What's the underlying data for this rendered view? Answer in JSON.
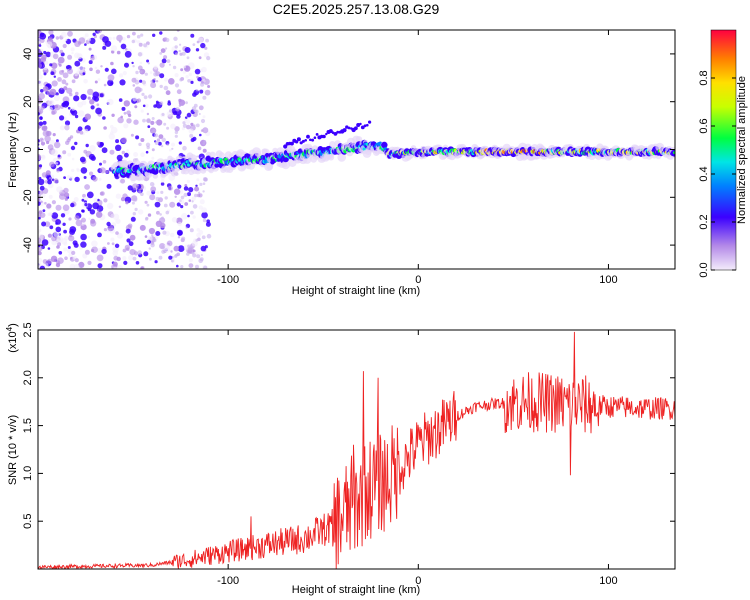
{
  "title": "C2E5.2025.257.13.08.G29",
  "chart_data": [
    {
      "type": "heatmap",
      "name": "spectrogram",
      "xlabel": "Height of straight line (km)",
      "ylabel": "Frequency (Hz)",
      "xlim": [
        -200,
        135
      ],
      "ylim": [
        -50,
        50
      ],
      "xticks": [
        -100,
        0,
        100
      ],
      "yticks": [
        -40,
        -20,
        0,
        20,
        40
      ],
      "colorbar": {
        "label": "Normalized spectral amplitude",
        "range": [
          0.0,
          1.0
        ],
        "ticks": [
          0.0,
          0.2,
          0.4,
          0.6,
          0.8
        ],
        "tick_labels": [
          "0.0",
          "0.2",
          "0.4",
          "0.6",
          "0.8"
        ]
      },
      "ridge": {
        "x": [
          -160,
          -140,
          -120,
          -100,
          -80,
          -60,
          -40,
          -20,
          -15,
          0,
          20,
          40,
          60,
          80,
          100,
          120,
          135
        ],
        "freq": [
          -9,
          -8,
          -6,
          -5,
          -4,
          -2,
          0,
          2,
          -2,
          -1,
          -1,
          -1,
          -1,
          -1,
          -1,
          -1,
          -1
        ]
      }
    },
    {
      "type": "line",
      "name": "snr",
      "xlabel": "Height of straight line (km)",
      "ylabel": "SNR (10 * v/v)",
      "y_multiplier_label": "(x10",
      "y_multiplier_exp": "4",
      "y_multiplier_close": ")",
      "xlim": [
        -200,
        135
      ],
      "ylim": [
        0,
        2.5
      ],
      "xticks": [
        -100,
        0,
        100
      ],
      "yticks": [
        0.5,
        1.0,
        1.5,
        2.0,
        2.5
      ],
      "ytick_labels": [
        "0.5",
        "1.0",
        "1.5",
        "2.0",
        "2.5"
      ],
      "color": "#ee2222",
      "envelope": {
        "x": [
          -200,
          -140,
          -120,
          -100,
          -80,
          -60,
          -45,
          -35,
          -25,
          -15,
          -8,
          0,
          10,
          20,
          30,
          40,
          60,
          80,
          100,
          120,
          135
        ],
        "y": [
          0.02,
          0.04,
          0.1,
          0.18,
          0.25,
          0.32,
          0.45,
          0.65,
          0.85,
          0.95,
          1.1,
          1.3,
          1.45,
          1.6,
          1.7,
          1.73,
          1.75,
          1.72,
          1.7,
          1.68,
          1.68
        ]
      },
      "peak_points": [
        {
          "x": -88,
          "y": 0.55
        },
        {
          "x": -34,
          "y": 1.3
        },
        {
          "x": -29,
          "y": 2.07
        },
        {
          "x": -21,
          "y": 2.0
        },
        {
          "x": 82,
          "y": 2.48
        },
        {
          "x": 80,
          "y": 0.98
        }
      ]
    }
  ]
}
